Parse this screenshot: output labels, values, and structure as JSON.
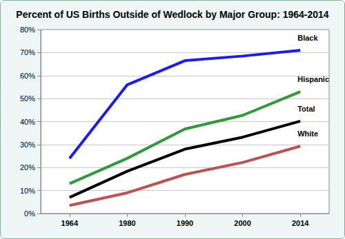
{
  "chart_data": {
    "type": "line",
    "title": "Percent of US Births Outside of Wedlock by Major Group: 1964-2014",
    "categories": [
      "1964",
      "1980",
      "1990",
      "2000",
      "2014"
    ],
    "series": [
      {
        "name": "Black",
        "color": "#1a1aff",
        "values": [
          24,
          56,
          66.5,
          68.5,
          71
        ]
      },
      {
        "name": "Hispanic",
        "color": "#2e9a3a",
        "values": [
          13,
          24,
          36.8,
          42.7,
          53
        ]
      },
      {
        "name": "Total",
        "color": "#000000",
        "values": [
          7,
          18.4,
          28,
          33.2,
          40.2
        ]
      },
      {
        "name": "White",
        "color": "#c0504d",
        "values": [
          3.5,
          9,
          17,
          22.2,
          29.3
        ]
      }
    ],
    "ylim": [
      0,
      80
    ],
    "yticks": [
      {
        "value": 0,
        "label": "0%"
      },
      {
        "value": 10,
        "label": "10%"
      },
      {
        "value": 20,
        "label": "20%"
      },
      {
        "value": 30,
        "label": "30%"
      },
      {
        "value": 40,
        "label": "40%"
      },
      {
        "value": 50,
        "label": "50%"
      },
      {
        "value": 60,
        "label": "60%"
      },
      {
        "value": 70,
        "label": "70%"
      },
      {
        "value": 80,
        "label": "80%"
      }
    ],
    "grid": true,
    "marker": "none"
  }
}
